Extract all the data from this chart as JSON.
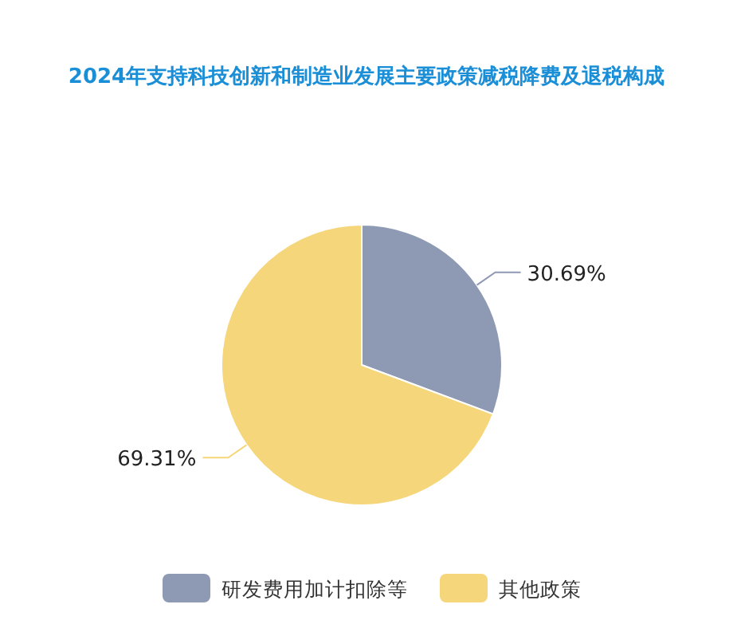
{
  "chart_data": {
    "type": "pie",
    "title": "2024年支持科技创新和制造业发展主要政策减税降费及退税构成",
    "categories": [
      "研发费用加计扣除等",
      "其他政策"
    ],
    "values": [
      30.69,
      69.31
    ],
    "colors": [
      "#8e99b3",
      "#f6d67a"
    ],
    "value_labels": [
      "30.69%",
      "69.31%"
    ],
    "legend": "bottom"
  }
}
